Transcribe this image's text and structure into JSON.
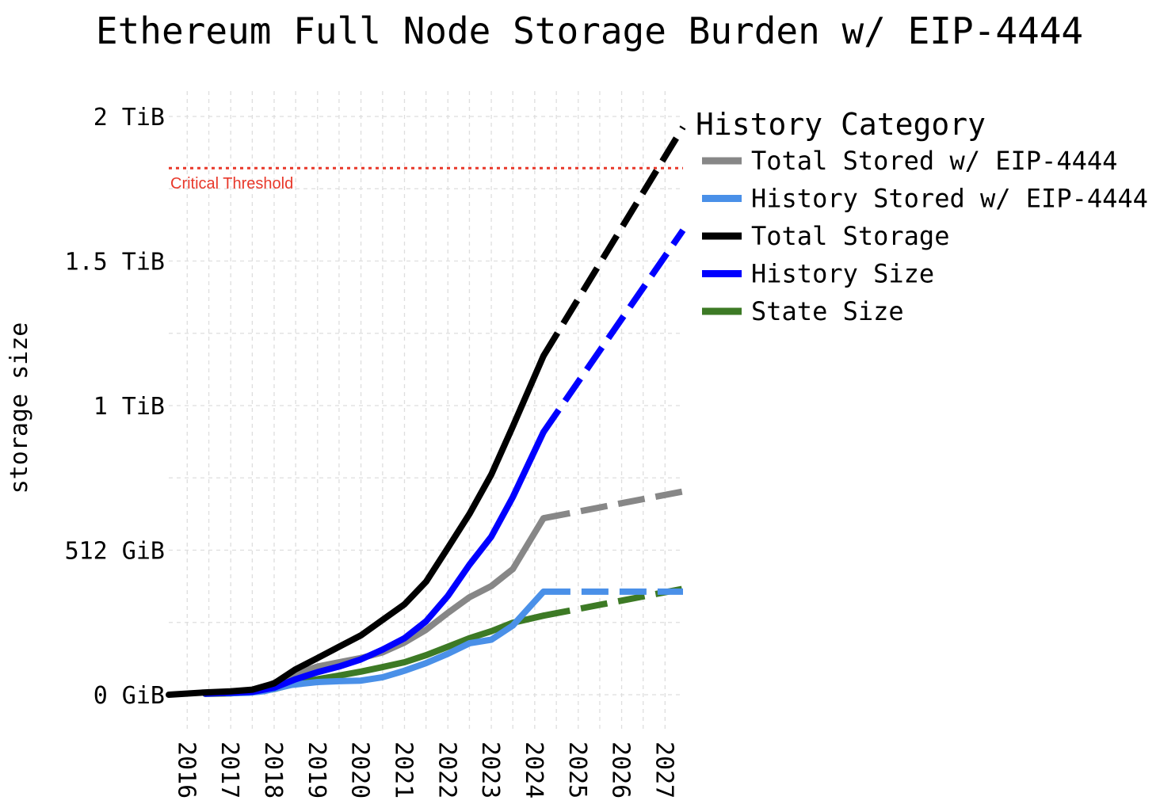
{
  "chart_data": {
    "type": "line",
    "title": "Ethereum Full Node Storage Burden w/ EIP-4444",
    "xlabel": "",
    "ylabel": "storage size",
    "xlim": [
      "2015-07-30",
      "2027-06-01"
    ],
    "ylim_gib": [
      0,
      2048
    ],
    "x_ticks": [
      "2016",
      "2017",
      "2018",
      "2019",
      "2020",
      "2021",
      "2022",
      "2023",
      "2024",
      "2025",
      "2026",
      "2027"
    ],
    "y_ticks": [
      {
        "value_gib": 0,
        "label": "0 GiB"
      },
      {
        "value_gib": 512,
        "label": "512 GiB"
      },
      {
        "value_gib": 1024,
        "label": "1 TiB"
      },
      {
        "value_gib": 1536,
        "label": "1.5 TiB"
      },
      {
        "value_gib": 2048,
        "label": "2 TiB"
      }
    ],
    "grid": true,
    "legend_title": "History Category",
    "legend_position": "right",
    "threshold": {
      "label": "Critical Threshold",
      "value_gib": 1865,
      "color": "#e8382a",
      "style": "dotted"
    },
    "series": [
      {
        "name": "Total Stored w/ EIP-4444",
        "color": "#878787",
        "solid": [
          [
            "2016-12-01",
            7
          ],
          [
            "2017-06-01",
            10
          ],
          [
            "2017-10-01",
            25
          ],
          [
            "2018-06-01",
            70
          ],
          [
            "2019-01-01",
            100
          ],
          [
            "2019-07-01",
            115
          ],
          [
            "2020-01-01",
            130
          ],
          [
            "2020-07-01",
            150
          ],
          [
            "2021-01-01",
            185
          ],
          [
            "2021-07-01",
            230
          ],
          [
            "2022-01-01",
            290
          ],
          [
            "2022-07-01",
            345
          ],
          [
            "2023-01-01",
            385
          ],
          [
            "2023-07-01",
            445
          ],
          [
            "2024-03-15",
            625
          ]
        ],
        "dashed": [
          [
            "2024-03-15",
            625
          ],
          [
            "2027-06-01",
            720
          ]
        ]
      },
      {
        "name": "History Stored w/ EIP-4444",
        "color": "#4a90e8",
        "solid": [
          [
            "2016-12-01",
            5
          ],
          [
            "2017-06-01",
            7
          ],
          [
            "2017-10-01",
            12
          ],
          [
            "2018-06-01",
            35
          ],
          [
            "2019-01-01",
            45
          ],
          [
            "2019-07-01",
            48
          ],
          [
            "2020-01-01",
            50
          ],
          [
            "2020-07-01",
            62
          ],
          [
            "2021-01-01",
            85
          ],
          [
            "2021-07-01",
            112
          ],
          [
            "2022-01-01",
            145
          ],
          [
            "2022-07-01",
            182
          ],
          [
            "2023-01-01",
            195
          ],
          [
            "2023-07-01",
            245
          ],
          [
            "2024-03-15",
            365
          ]
        ],
        "dashed": [
          [
            "2024-03-15",
            365
          ],
          [
            "2027-06-01",
            365
          ]
        ]
      },
      {
        "name": "Total Storage",
        "color": "#000000",
        "solid": [
          [
            "2015-07-30",
            0
          ],
          [
            "2016-06-01",
            8
          ],
          [
            "2017-01-01",
            12
          ],
          [
            "2017-07-01",
            18
          ],
          [
            "2018-01-01",
            40
          ],
          [
            "2018-07-01",
            90
          ],
          [
            "2019-01-01",
            130
          ],
          [
            "2019-07-01",
            170
          ],
          [
            "2020-01-01",
            210
          ],
          [
            "2020-07-01",
            265
          ],
          [
            "2021-01-01",
            320
          ],
          [
            "2021-07-01",
            400
          ],
          [
            "2022-01-01",
            520
          ],
          [
            "2022-07-01",
            640
          ],
          [
            "2023-01-01",
            780
          ],
          [
            "2023-07-01",
            950
          ],
          [
            "2024-03-15",
            1200
          ]
        ],
        "dashed": [
          [
            "2024-03-15",
            1200
          ],
          [
            "2027-06-01",
            2010
          ]
        ]
      },
      {
        "name": "History Size",
        "color": "#0000ff",
        "solid": [
          [
            "2016-06-01",
            4
          ],
          [
            "2017-01-01",
            7
          ],
          [
            "2017-07-01",
            10
          ],
          [
            "2018-01-01",
            25
          ],
          [
            "2018-07-01",
            55
          ],
          [
            "2019-01-01",
            80
          ],
          [
            "2019-07-01",
            100
          ],
          [
            "2020-01-01",
            125
          ],
          [
            "2020-07-01",
            160
          ],
          [
            "2021-01-01",
            200
          ],
          [
            "2021-07-01",
            260
          ],
          [
            "2022-01-01",
            350
          ],
          [
            "2022-07-01",
            460
          ],
          [
            "2023-01-01",
            560
          ],
          [
            "2023-07-01",
            700
          ],
          [
            "2024-03-15",
            930
          ]
        ],
        "dashed": [
          [
            "2024-03-15",
            930
          ],
          [
            "2027-06-01",
            1645
          ]
        ]
      },
      {
        "name": "State Size",
        "color": "#3d7a25",
        "solid": [
          [
            "2016-06-01",
            3
          ],
          [
            "2017-01-01",
            5
          ],
          [
            "2017-07-01",
            10
          ],
          [
            "2018-01-01",
            20
          ],
          [
            "2018-07-01",
            40
          ],
          [
            "2019-01-01",
            55
          ],
          [
            "2019-07-01",
            68
          ],
          [
            "2020-01-01",
            82
          ],
          [
            "2020-07-01",
            98
          ],
          [
            "2021-01-01",
            115
          ],
          [
            "2021-07-01",
            140
          ],
          [
            "2022-01-01",
            170
          ],
          [
            "2022-07-01",
            200
          ],
          [
            "2023-01-01",
            225
          ],
          [
            "2023-07-01",
            255
          ],
          [
            "2024-03-15",
            280
          ]
        ],
        "dashed": [
          [
            "2024-03-15",
            280
          ],
          [
            "2027-06-01",
            375
          ]
        ]
      }
    ]
  }
}
